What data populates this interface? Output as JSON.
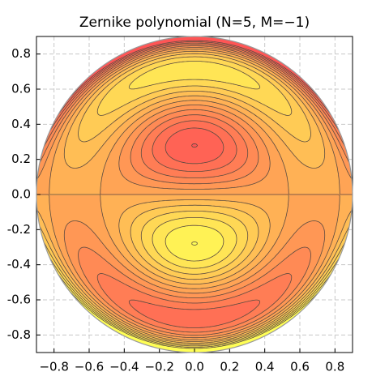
{
  "chart_data": {
    "type": "zernike-contour",
    "title": "Zernike polynomial (N=5, M=−1)",
    "n": 5,
    "m": -1,
    "xlim": [
      -0.9,
      0.9
    ],
    "ylim": [
      -0.9,
      0.9
    ],
    "xticks": [
      {
        "value": -0.8,
        "label": "−0.8"
      },
      {
        "value": -0.6,
        "label": "−0.6"
      },
      {
        "value": -0.4,
        "label": "−0.4"
      },
      {
        "value": -0.2,
        "label": "−0.2"
      },
      {
        "value": 0,
        "label": "0.0"
      },
      0.2,
      0.4,
      0.6,
      0.8
    ],
    "yticks": [
      {
        "value": -0.8,
        "label": "-0.8"
      },
      {
        "value": -0.6,
        "label": "-0.6"
      },
      {
        "value": -0.4,
        "label": "-0.4"
      },
      {
        "value": -0.2,
        "label": "-0.2"
      },
      {
        "value": 0,
        "label": "0.0"
      },
      0.2,
      0.4,
      0.6,
      0.8
    ],
    "grid": true,
    "levels": [
      -0.6,
      -0.5,
      -0.4,
      -0.3,
      -0.2,
      -0.1,
      0,
      0.1,
      0.2,
      0.3,
      0.4,
      0.5,
      0.6
    ],
    "colors": [
      "#ffff55",
      "#fff255",
      "#ffe555",
      "#ffd855",
      "#ffcb55",
      "#ffbe55",
      "#ffb155",
      "#ffa455",
      "#ff9755",
      "#ff8a55",
      "#ff7d55",
      "#ff7055",
      "#ff6355",
      "#ff5555"
    ],
    "line_color": "#5a4a40"
  }
}
